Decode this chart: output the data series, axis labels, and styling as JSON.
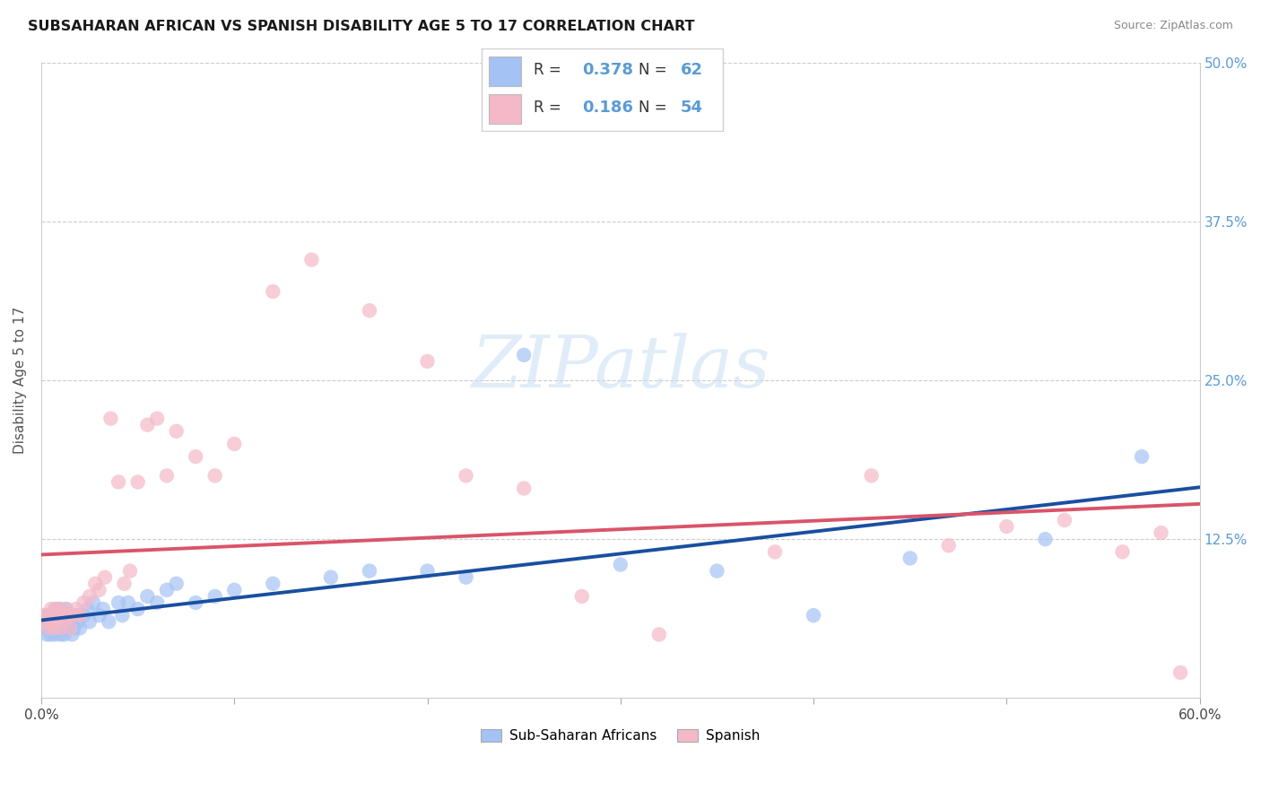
{
  "title": "SUBSAHARAN AFRICAN VS SPANISH DISABILITY AGE 5 TO 17 CORRELATION CHART",
  "source": "Source: ZipAtlas.com",
  "ylabel_label": "Disability Age 5 to 17",
  "legend_labels": [
    "Sub-Saharan Africans",
    "Spanish"
  ],
  "blue_color": "#a4c2f4",
  "pink_color": "#f4b8c8",
  "blue_line_color": "#1a4fa0",
  "pink_line_color": "#d9546a",
  "watermark": "ZIPatlas",
  "xlim": [
    0.0,
    0.6
  ],
  "ylim": [
    0.0,
    0.5
  ],
  "blue_x": [
    0.001,
    0.002,
    0.003,
    0.003,
    0.004,
    0.004,
    0.005,
    0.005,
    0.006,
    0.006,
    0.007,
    0.007,
    0.008,
    0.008,
    0.009,
    0.009,
    0.01,
    0.01,
    0.011,
    0.011,
    0.012,
    0.012,
    0.013,
    0.013,
    0.014,
    0.015,
    0.015,
    0.016,
    0.017,
    0.018,
    0.019,
    0.02,
    0.022,
    0.024,
    0.025,
    0.027,
    0.03,
    0.032,
    0.035,
    0.04,
    0.042,
    0.045,
    0.05,
    0.055,
    0.06,
    0.065,
    0.07,
    0.08,
    0.09,
    0.1,
    0.12,
    0.15,
    0.17,
    0.2,
    0.22,
    0.25,
    0.3,
    0.35,
    0.4,
    0.45,
    0.52,
    0.57
  ],
  "blue_y": [
    0.055,
    0.06,
    0.05,
    0.065,
    0.055,
    0.06,
    0.05,
    0.065,
    0.06,
    0.055,
    0.065,
    0.05,
    0.06,
    0.07,
    0.055,
    0.065,
    0.05,
    0.07,
    0.06,
    0.055,
    0.065,
    0.05,
    0.06,
    0.07,
    0.055,
    0.06,
    0.065,
    0.05,
    0.055,
    0.065,
    0.06,
    0.055,
    0.065,
    0.07,
    0.06,
    0.075,
    0.065,
    0.07,
    0.06,
    0.075,
    0.065,
    0.075,
    0.07,
    0.08,
    0.075,
    0.085,
    0.09,
    0.075,
    0.08,
    0.085,
    0.09,
    0.095,
    0.1,
    0.1,
    0.095,
    0.27,
    0.105,
    0.1,
    0.065,
    0.11,
    0.125,
    0.19
  ],
  "pink_x": [
    0.001,
    0.002,
    0.003,
    0.004,
    0.005,
    0.005,
    0.006,
    0.007,
    0.007,
    0.008,
    0.008,
    0.009,
    0.01,
    0.011,
    0.012,
    0.013,
    0.014,
    0.015,
    0.016,
    0.018,
    0.02,
    0.022,
    0.025,
    0.028,
    0.03,
    0.033,
    0.036,
    0.04,
    0.043,
    0.046,
    0.05,
    0.055,
    0.06,
    0.065,
    0.07,
    0.08,
    0.09,
    0.1,
    0.12,
    0.14,
    0.17,
    0.2,
    0.22,
    0.25,
    0.28,
    0.32,
    0.38,
    0.43,
    0.47,
    0.5,
    0.53,
    0.56,
    0.58,
    0.59
  ],
  "pink_y": [
    0.065,
    0.06,
    0.065,
    0.055,
    0.07,
    0.06,
    0.065,
    0.055,
    0.07,
    0.06,
    0.065,
    0.07,
    0.055,
    0.065,
    0.06,
    0.07,
    0.065,
    0.055,
    0.065,
    0.07,
    0.065,
    0.075,
    0.08,
    0.09,
    0.085,
    0.095,
    0.22,
    0.17,
    0.09,
    0.1,
    0.17,
    0.215,
    0.22,
    0.175,
    0.21,
    0.19,
    0.175,
    0.2,
    0.32,
    0.345,
    0.305,
    0.265,
    0.175,
    0.165,
    0.08,
    0.05,
    0.115,
    0.175,
    0.12,
    0.135,
    0.14,
    0.115,
    0.13,
    0.02
  ]
}
